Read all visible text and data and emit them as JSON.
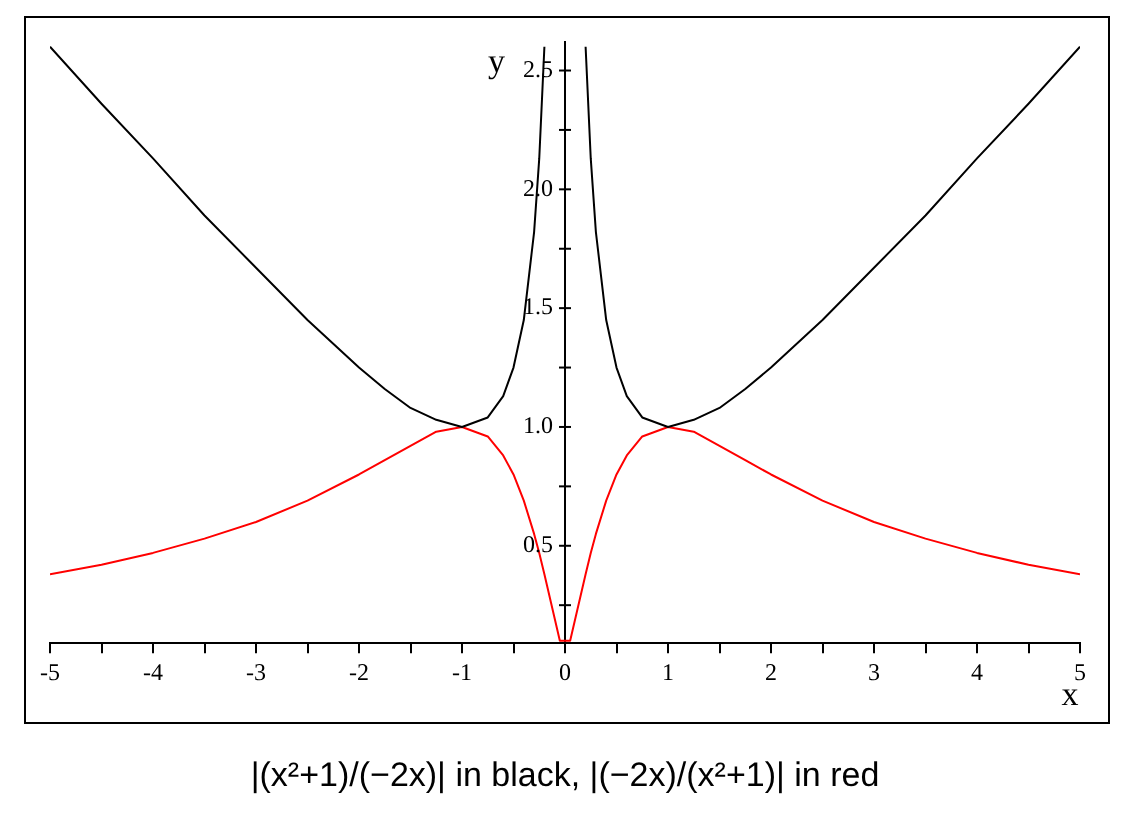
{
  "chart_data": {
    "type": "line",
    "title": "|(x²+1)/(−2x)| in black, |(−2x)/(x²+1)| in red",
    "xlabel": "x",
    "ylabel": "y",
    "xlim": [
      -5,
      5
    ],
    "ylim": [
      0.09,
      2.62
    ],
    "xticks": [
      -5,
      {
        "value": -4.5,
        "label": null
      },
      -4,
      {
        "value": -3.5,
        "label": null
      },
      -3,
      {
        "value": -2.5,
        "label": null
      },
      -2,
      {
        "value": -1.5,
        "label": null
      },
      -1,
      {
        "value": -0.5,
        "label": null
      },
      0,
      {
        "value": 0.5,
        "label": null
      },
      1,
      {
        "value": 1.5,
        "label": null
      },
      2,
      {
        "value": 2.5,
        "label": null
      },
      3,
      {
        "value": 3.5,
        "label": null
      },
      4,
      {
        "value": 4.5,
        "label": null
      },
      5
    ],
    "yticks": [
      {
        "value": 0.25,
        "label": null
      },
      {
        "value": 0.5,
        "label": "0.5"
      },
      {
        "value": 0.75,
        "label": null
      },
      {
        "value": 1,
        "label": "1.0"
      },
      {
        "value": 1.25,
        "label": null
      },
      {
        "value": 1.5,
        "label": "1.5"
      },
      {
        "value": 1.75,
        "label": null
      },
      {
        "value": 2,
        "label": "2.0"
      },
      {
        "value": 2.25,
        "label": null
      },
      {
        "value": 2.5,
        "label": "2.5"
      }
    ],
    "marker": "none",
    "line_style": "solid",
    "series": [
      {
        "color": "#000000",
        "x": [
          -5,
          -4.5,
          -4,
          -3.5,
          -3,
          -2.5,
          -2,
          -1.75,
          -1.5,
          -1.25,
          -1,
          -0.75,
          -0.6,
          -0.5,
          -0.4,
          -0.3,
          -0.25,
          -0.2,
          0,
          0.2,
          0.25,
          0.3,
          0.4,
          0.5,
          0.6,
          0.75,
          1,
          1.25,
          1.5,
          1.75,
          2,
          2.5,
          3,
          3.5,
          4,
          4.5,
          5
        ],
        "values": [
          2.6,
          2.36,
          2.13,
          1.89,
          1.67,
          1.45,
          1.25,
          1.16,
          1.08,
          1.03,
          1,
          1.04,
          1.13,
          1.25,
          1.45,
          1.82,
          2.13,
          2.6,
          null,
          2.6,
          2.13,
          1.82,
          1.45,
          1.25,
          1.13,
          1.04,
          1,
          1.03,
          1.08,
          1.16,
          1.25,
          1.45,
          1.67,
          1.89,
          2.13,
          2.36,
          2.6
        ]
      },
      {
        "color": "#ff0000",
        "x": [
          -5,
          -4.5,
          -4,
          -3.5,
          -3,
          -2.5,
          -2,
          -1.75,
          -1.5,
          -1.25,
          -1,
          -0.75,
          -0.6,
          -0.5,
          -0.4,
          -0.3,
          -0.25,
          -0.2,
          -0.05,
          0.05,
          0.2,
          0.25,
          0.3,
          0.4,
          0.5,
          0.6,
          0.75,
          1,
          1.25,
          1.5,
          1.75,
          2,
          2.5,
          3,
          3.5,
          4,
          4.5,
          5
        ],
        "values": [
          0.38,
          0.42,
          0.47,
          0.53,
          0.6,
          0.69,
          0.8,
          0.86,
          0.92,
          0.98,
          1,
          0.96,
          0.88,
          0.8,
          0.69,
          0.55,
          0.47,
          0.38,
          0.1,
          0.1,
          0.38,
          0.47,
          0.55,
          0.69,
          0.8,
          0.88,
          0.96,
          1,
          0.98,
          0.92,
          0.86,
          0.8,
          0.69,
          0.6,
          0.53,
          0.47,
          0.42,
          0.38
        ]
      }
    ]
  }
}
